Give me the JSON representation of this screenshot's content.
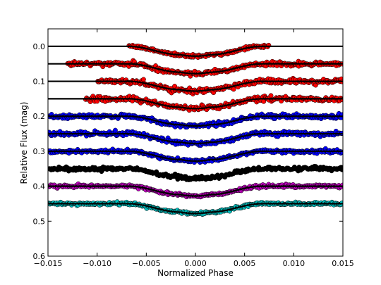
{
  "chart_data": {
    "type": "scatter",
    "title": "",
    "xlabel": "Normalized Phase",
    "ylabel": "Relative Flux (mag)",
    "xlim": [
      -0.015,
      0.015
    ],
    "ylim": [
      0.6,
      -0.05
    ],
    "y_inverted": true,
    "grid": false,
    "legend": "none",
    "x_ticks": [
      -0.015,
      -0.01,
      -0.005,
      0.0,
      0.005,
      0.01,
      0.015
    ],
    "x_tick_labels": [
      "−0.015",
      "−0.010",
      "−0.005",
      "0.000",
      "0.005",
      "0.010",
      "0.015"
    ],
    "y_ticks": [
      0.0,
      0.1,
      0.2,
      0.3,
      0.4,
      0.5,
      0.6
    ],
    "y_tick_labels": [
      "0.0",
      "0.1",
      "0.2",
      "0.3",
      "0.4",
      "0.5",
      "0.6"
    ],
    "transit": {
      "ingress_start": -0.0068,
      "ingress_end": -0.0015,
      "egress_start": 0.0015,
      "egress_end": 0.0068,
      "depth": 0.028
    },
    "model_line_color": "#000000",
    "series": [
      {
        "color": "#ff0000",
        "baseline": 0.0,
        "x_start": -0.0068,
        "x_end": 0.0075,
        "noise": 0.002,
        "line_from": -0.015
      },
      {
        "color": "#ff0000",
        "baseline": 0.05,
        "x_start": -0.013,
        "x_end": 0.015,
        "noise": 0.0028,
        "line_from": -0.015
      },
      {
        "color": "#ff0000",
        "baseline": 0.1,
        "x_start": -0.01,
        "x_end": 0.015,
        "noise": 0.0035,
        "line_from": -0.015
      },
      {
        "color": "#ff0000",
        "baseline": 0.15,
        "x_start": -0.0112,
        "x_end": 0.015,
        "noise": 0.0035,
        "line_from": -0.015
      },
      {
        "color": "#0000ff",
        "baseline": 0.2,
        "x_start": -0.015,
        "x_end": 0.015,
        "noise": 0.003,
        "line_from": -0.015
      },
      {
        "color": "#0000ff",
        "baseline": 0.25,
        "x_start": -0.015,
        "x_end": 0.015,
        "noise": 0.003,
        "line_from": -0.015
      },
      {
        "color": "#0000ff",
        "baseline": 0.3,
        "x_start": -0.015,
        "x_end": 0.015,
        "noise": 0.0025,
        "line_from": -0.015
      },
      {
        "color": "#000000",
        "baseline": 0.35,
        "x_start": -0.015,
        "x_end": 0.015,
        "noise": 0.0025,
        "line_from": -0.015
      },
      {
        "color": "#bf00bf",
        "baseline": 0.4,
        "x_start": -0.015,
        "x_end": 0.015,
        "noise": 0.002,
        "line_from": -0.015
      },
      {
        "color": "#00bfbf",
        "baseline": 0.45,
        "x_start": -0.015,
        "x_end": 0.015,
        "noise": 0.002,
        "line_from": -0.015
      }
    ]
  }
}
